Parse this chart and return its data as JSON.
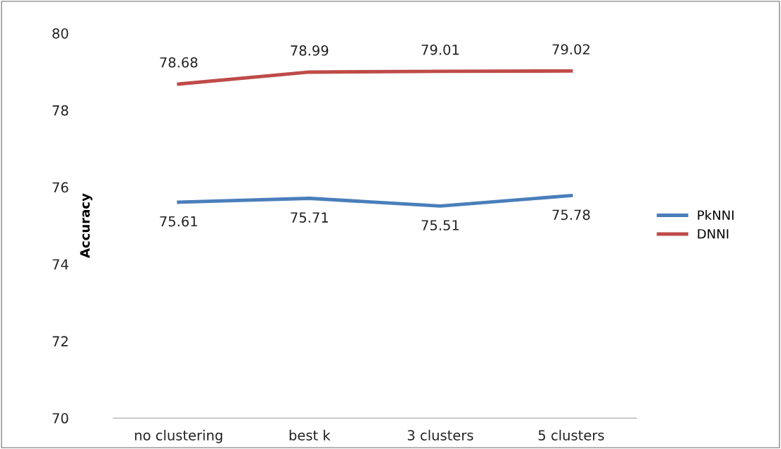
{
  "chart_data": {
    "type": "line",
    "ylabel": "Accuracy",
    "categories": [
      "no clustering",
      "best k",
      "3 clusters",
      "5 clusters"
    ],
    "series": [
      {
        "name": "PkNNI",
        "color": "#4a7ebb",
        "values": [
          75.61,
          75.71,
          75.51,
          75.78
        ]
      },
      {
        "name": "DNNI",
        "color": "#be4b48",
        "values": [
          78.68,
          78.99,
          79.01,
          79.02
        ]
      }
    ],
    "ylim": [
      70,
      80
    ],
    "yticks": [
      70,
      72,
      74,
      76,
      78,
      80
    ],
    "data_labels": true,
    "legend": "right",
    "grid": false,
    "marker": "none",
    "line_style": "solid"
  }
}
